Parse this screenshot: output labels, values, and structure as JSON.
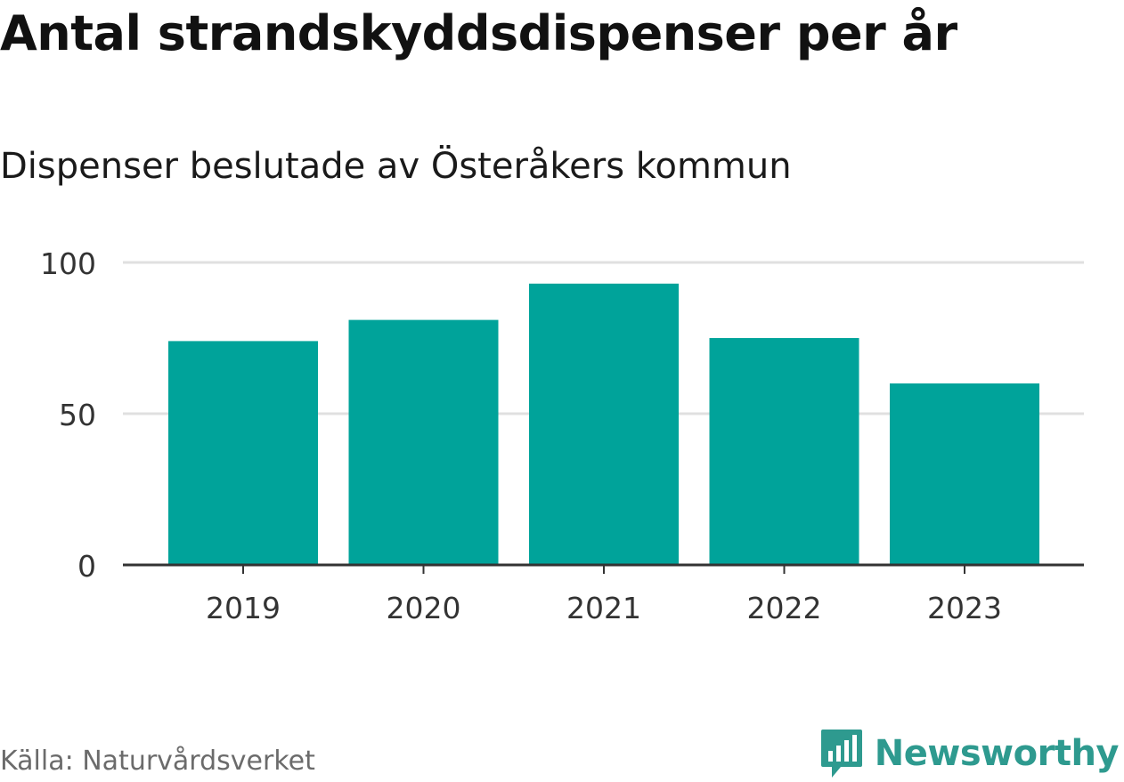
{
  "header": {
    "title": "Antal strandskyddsdispenser per år",
    "subtitle": "Dispenser beslutade av Österåkers kommun"
  },
  "footer": {
    "source": "Källa: Naturvårdsverket",
    "brand": "Newsworthy"
  },
  "colors": {
    "bar": "#00a39a",
    "grid": "#e0e0e0",
    "axis": "#333333",
    "tick_text": "#333333",
    "brand": "#2e9a8f"
  },
  "chart_data": {
    "type": "bar",
    "title": "Antal strandskyddsdispenser per år",
    "subtitle": "Dispenser beslutade av Österåkers kommun",
    "xlabel": "",
    "ylabel": "",
    "categories": [
      "2019",
      "2020",
      "2021",
      "2022",
      "2023"
    ],
    "values": [
      74,
      81,
      93,
      75,
      60
    ],
    "ylim": [
      0,
      100
    ],
    "yticks": [
      0,
      50,
      100
    ],
    "grid": true,
    "legend": "none"
  }
}
